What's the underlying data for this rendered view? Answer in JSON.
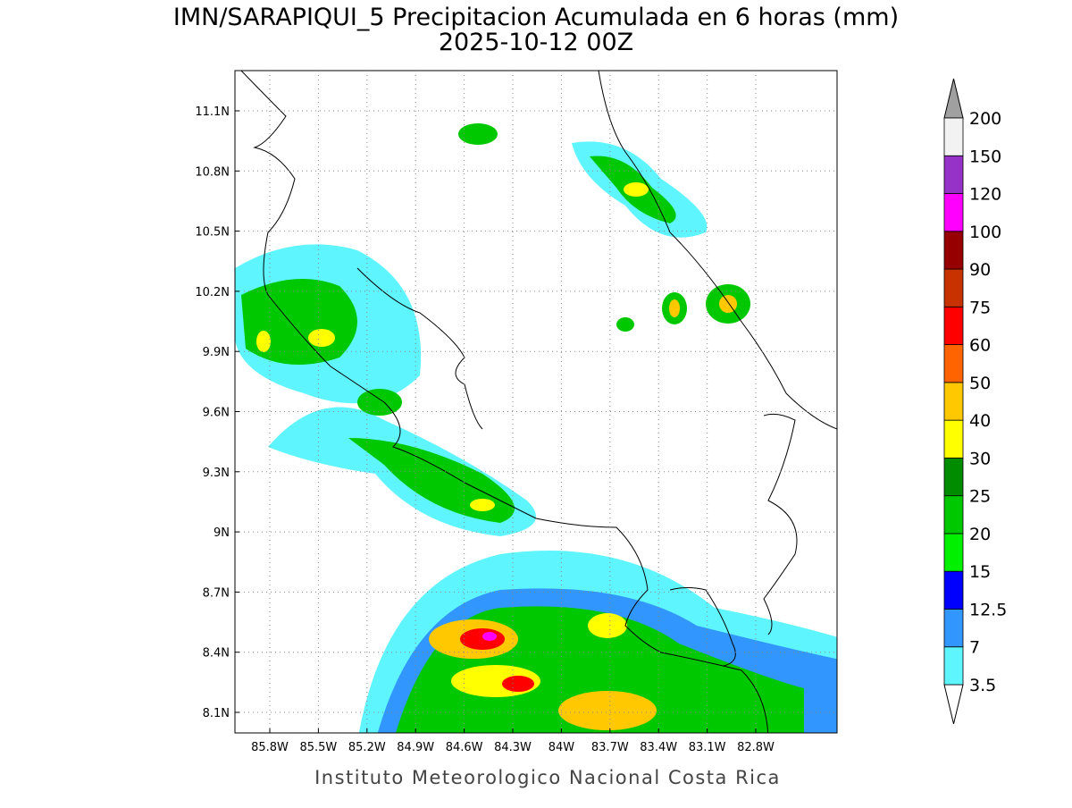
{
  "title": "IMN/SARAPIQUI_5 Precipitacion Acumulada en 6 horas (mm)",
  "subtitle": "2025-10-12 00Z",
  "lat_labels": [
    "11.1N",
    "10.8N",
    "10.5N",
    "10.2N",
    "9.9N",
    "9.6N",
    "9.3N",
    "9N",
    "8.7N",
    "8.4N",
    "8.1N"
  ],
  "lon_labels": [
    "85.8W",
    "85.5W",
    "85.2W",
    "84.9W",
    "84.6W",
    "84.3W",
    "84W",
    "83.7W",
    "83.4W",
    "83.1W",
    "82.8W"
  ],
  "colorbar": {
    "levels": [
      3.5,
      7,
      12.5,
      15,
      20,
      25,
      30,
      40,
      50,
      60,
      75,
      90,
      100,
      120,
      150,
      200
    ],
    "colors": [
      "#5ff5ff",
      "#3296ff",
      "#0000ff",
      "#00f000",
      "#00c800",
      "#008c00",
      "#ffff00",
      "#ffc800",
      "#ff6400",
      "#ff0000",
      "#c83200",
      "#960000",
      "#ff00ff",
      "#9632c8",
      "#f2f2f2"
    ]
  },
  "footer": "Instituto Meteorologico Nacional Costa Rica"
}
